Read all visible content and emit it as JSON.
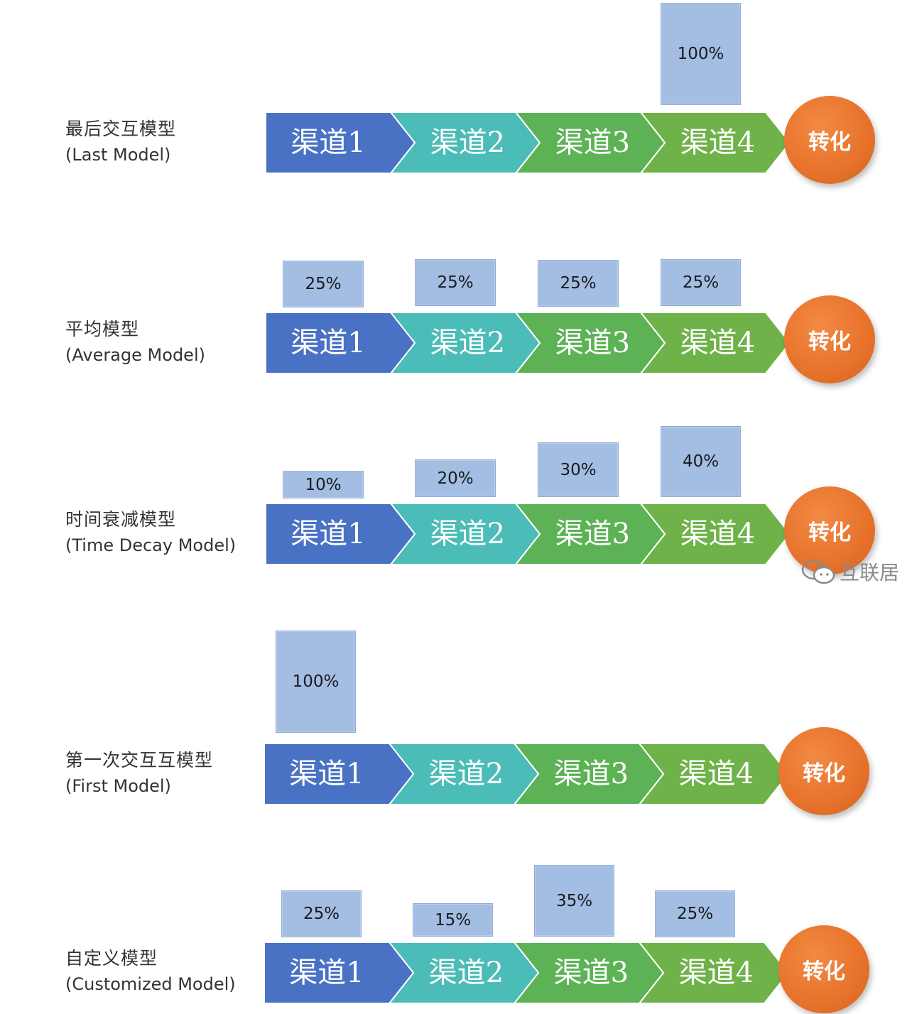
{
  "channels": [
    "渠道1",
    "渠道2",
    "渠道3",
    "渠道4"
  ],
  "conversion_label": "转化",
  "colors": {
    "channel1": "#4a72c4",
    "channel2": "#4bbcb8",
    "channel3": "#5db256",
    "channel4": "#6fb24a",
    "conversion": "#e8742d",
    "percent_box": "#a3bde3"
  },
  "models": [
    {
      "name_zh": "最后交互模型",
      "name_en": "(Last Model)",
      "values": [
        null,
        null,
        null,
        "100%"
      ],
      "shares": [
        0,
        0,
        0,
        1.0
      ]
    },
    {
      "name_zh": "平均模型",
      "name_en": "(Average Model)",
      "values": [
        "25%",
        "25%",
        "25%",
        "25%"
      ],
      "shares": [
        0.25,
        0.25,
        0.25,
        0.25
      ]
    },
    {
      "name_zh": "时间衰减模型",
      "name_en": "(Time Decay Model)",
      "values": [
        "10%",
        "20%",
        "30%",
        "40%"
      ],
      "shares": [
        0.1,
        0.2,
        0.3,
        0.4
      ]
    },
    {
      "name_zh": "第一次交互互模型",
      "name_en": "(First Model)",
      "values": [
        "100%",
        null,
        null,
        null
      ],
      "shares": [
        1.0,
        0,
        0,
        0
      ]
    },
    {
      "name_zh": "自定义模型",
      "name_en": "(Customized Model)",
      "values": [
        "25%",
        "15%",
        "35%",
        "25%"
      ],
      "shares": [
        0.25,
        0.15,
        0.35,
        0.25
      ]
    }
  ],
  "watermark": {
    "text": "互联居",
    "icon": "wechat-icon"
  }
}
